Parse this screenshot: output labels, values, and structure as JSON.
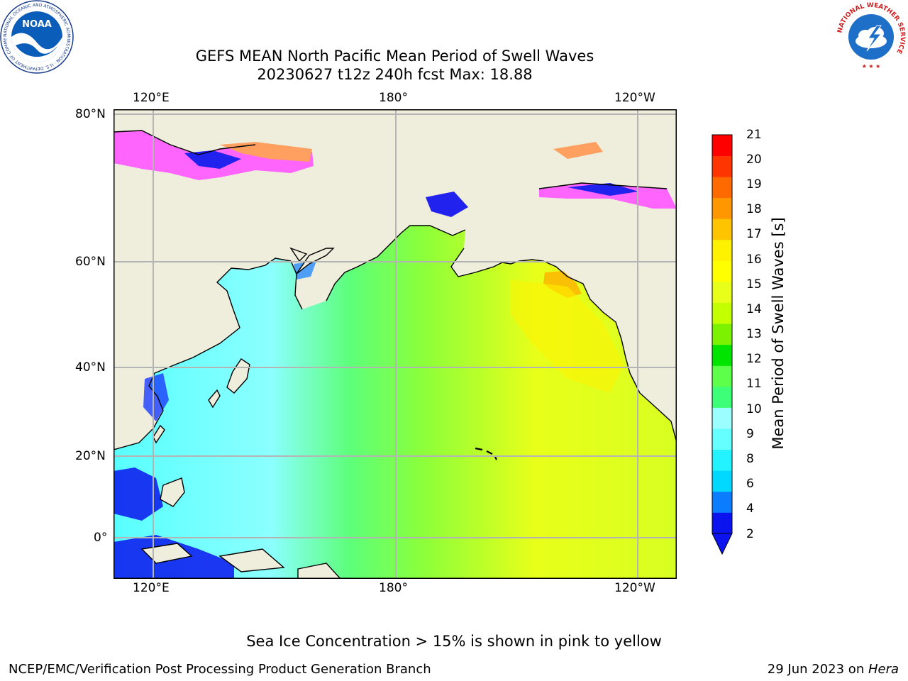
{
  "title": {
    "line1": "GEFS MEAN North Pacific Mean Period of Swell Waves",
    "line2": "20230627 t12z 240h fcst   Max: 18.88"
  },
  "logos": {
    "noaa_text": "NOAA",
    "noaa_ring": "NATIONAL OCEANIC AND ATMOSPHERIC ADMINISTRATION · U.S. DEPARTMENT OF COMMERCE",
    "nws_ring": "NATIONAL WEATHER SERVICE"
  },
  "axes": {
    "lon_top": [
      "120°E",
      "180°",
      "120°W"
    ],
    "lon_bottom": [
      "120°E",
      "180°",
      "120°W"
    ],
    "lat": [
      "80°N",
      "60°N",
      "40°N",
      "20°N",
      "0°"
    ]
  },
  "colorbar": {
    "label": "Mean Period of Swell Waves [s]",
    "ticks": [
      "21",
      "20",
      "19",
      "18",
      "17",
      "16",
      "15",
      "14",
      "13",
      "12",
      "11",
      "10",
      "9",
      "8",
      "6",
      "4",
      "2"
    ],
    "colors": [
      "#0b14ee",
      "#0a7dff",
      "#00d8ff",
      "#23f2ff",
      "#66ffff",
      "#9cffff",
      "#3dff78",
      "#5dff4a",
      "#00e400",
      "#7df200",
      "#c3ff00",
      "#e8ff19",
      "#ffff00",
      "#fff200",
      "#ffc400",
      "#ff9800",
      "#ff6a00",
      "#ff3500",
      "#ff0000"
    ]
  },
  "notes": {
    "ice": "Sea Ice Concentration > 15% is shown in pink to yellow"
  },
  "footer": {
    "left": "NCEP/EMC/Verification Post Processing Product Generation Branch",
    "right_prefix": "29 Jun 2023 on ",
    "right_machine": "Hera"
  }
}
